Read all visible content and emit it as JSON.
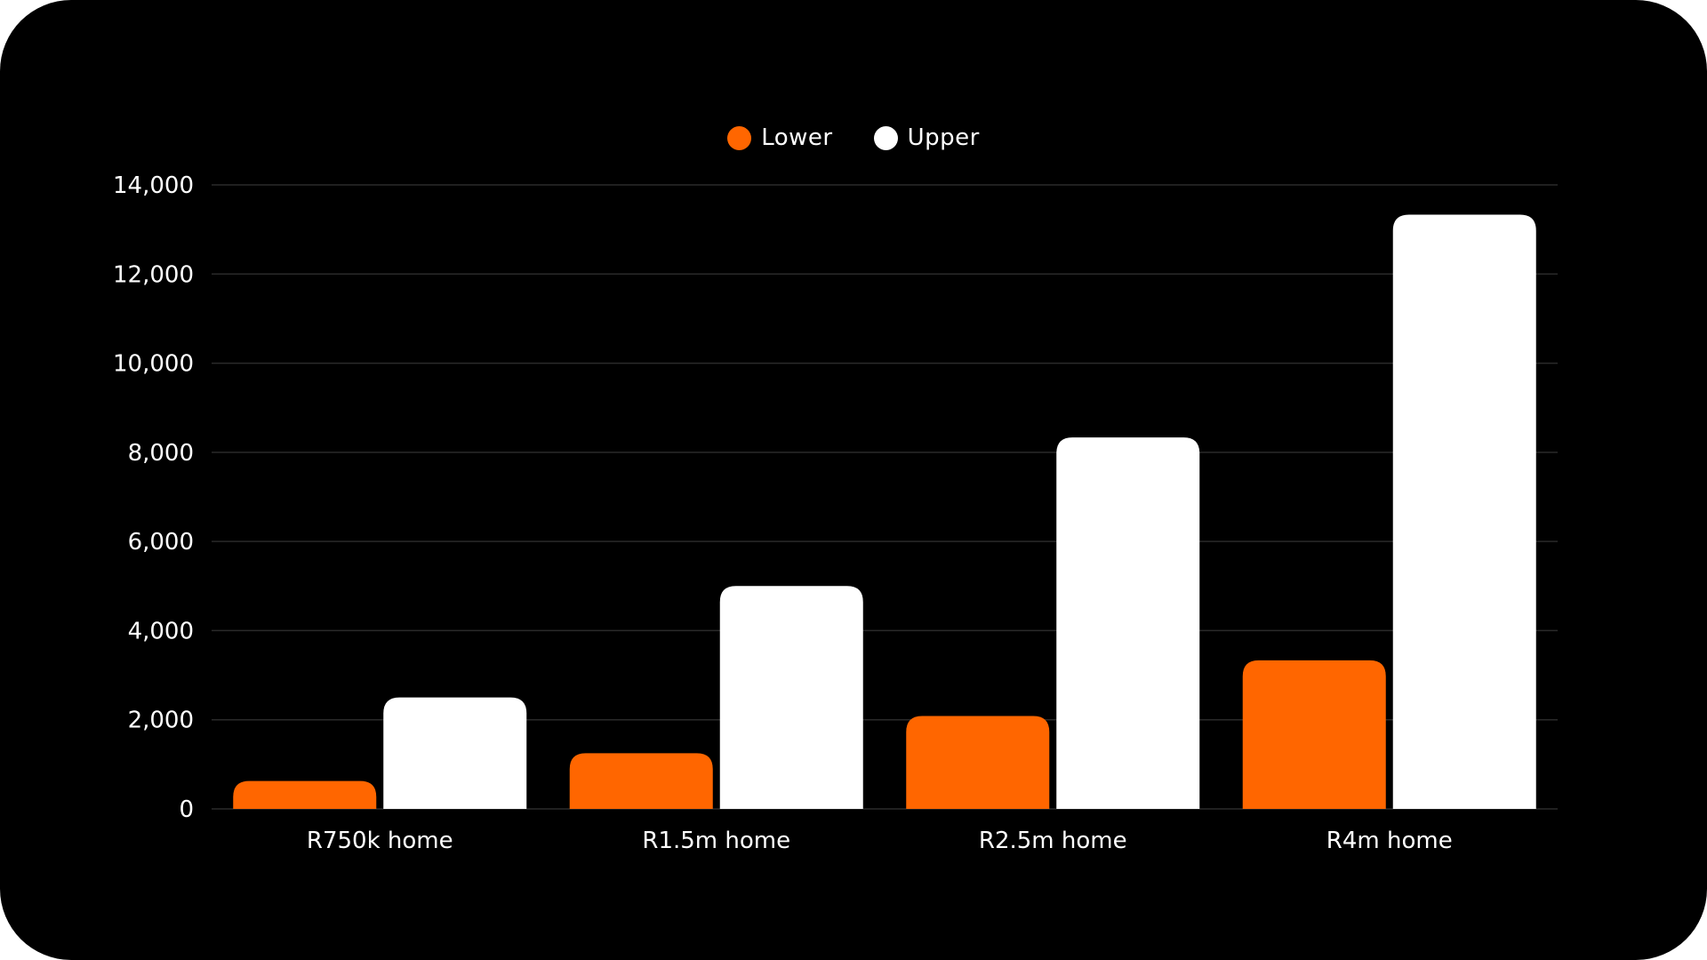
{
  "chart_data": {
    "type": "bar",
    "categories": [
      "R750k home",
      "R1.5m home",
      "R2.5m home",
      "R4m home"
    ],
    "series": [
      {
        "name": "Lower",
        "color": "#ff6600",
        "values": [
          625,
          1250,
          2083,
          3333
        ]
      },
      {
        "name": "Upper",
        "color": "#ffffff",
        "values": [
          2500,
          5000,
          8333,
          13333
        ]
      }
    ],
    "ylim": [
      0,
      14000
    ],
    "yticks": [
      "0",
      "2,000",
      "4,000",
      "6,000",
      "8,000",
      "10,000",
      "12,000",
      "14,000"
    ],
    "ytick_values": [
      0,
      2000,
      4000,
      6000,
      8000,
      10000,
      12000,
      14000
    ],
    "grid": true,
    "legend": "top-center",
    "background": "#000000"
  }
}
